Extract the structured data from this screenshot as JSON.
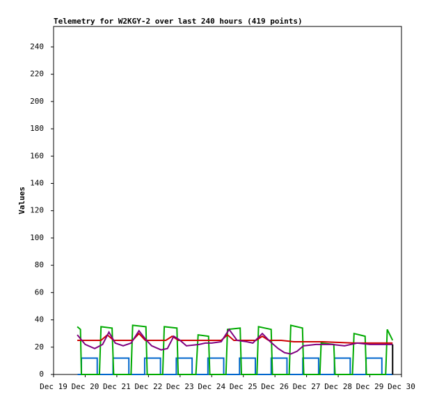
{
  "chart_data": {
    "type": "line",
    "title": "Telemetry for W2KGY-2 over last 240 hours (419 points)",
    "y_label": "Values",
    "xlim": [
      0,
      11
    ],
    "xticks": [
      {
        "value": 0,
        "label": "Dec 19"
      },
      {
        "value": 1,
        "label": "Dec 20"
      },
      {
        "value": 2,
        "label": "Dec 21"
      },
      {
        "value": 3,
        "label": "Dec 22"
      },
      {
        "value": 4,
        "label": "Dec 23"
      },
      {
        "value": 5,
        "label": "Dec 24"
      },
      {
        "value": 6,
        "label": "Dec 25"
      },
      {
        "value": 7,
        "label": "Dec 26"
      },
      {
        "value": 8,
        "label": "Dec 27"
      },
      {
        "value": 9,
        "label": "Dec 28"
      },
      {
        "value": 10,
        "label": "Dec 29"
      },
      {
        "value": 11,
        "label": "Dec 30"
      }
    ],
    "ylim": [
      0,
      255
    ],
    "yticks": [
      0,
      20,
      40,
      60,
      80,
      100,
      120,
      140,
      160,
      180,
      200,
      220,
      240
    ],
    "series": [
      {
        "color": "#0066cc",
        "x": [
          0.76,
          0.88,
          0.88,
          1.38,
          1.38,
          1.88,
          1.88,
          2.38,
          2.38,
          2.88,
          2.88,
          3.38,
          3.38,
          3.88,
          3.88,
          4.38,
          4.38,
          4.88,
          4.88,
          5.38,
          5.38,
          5.88,
          5.88,
          6.38,
          6.38,
          6.88,
          6.88,
          7.38,
          7.38,
          7.88,
          7.88,
          8.38,
          8.38,
          8.88,
          8.88,
          9.38,
          9.38,
          9.88,
          9.88,
          10.38,
          10.38,
          10.72
        ],
        "values": [
          0,
          0,
          12,
          12,
          0,
          0,
          12,
          12,
          0,
          0,
          12,
          12,
          0,
          0,
          12,
          12,
          0,
          0,
          12,
          12,
          0,
          0,
          12,
          12,
          0,
          0,
          12,
          12,
          0,
          0,
          12,
          12,
          0,
          0,
          12,
          12,
          0,
          0,
          12,
          12,
          0,
          0
        ]
      },
      {
        "color": "#00aa00",
        "x": [
          0.75,
          0.85,
          0.88,
          1.45,
          1.5,
          1.85,
          1.9,
          2.45,
          2.5,
          2.92,
          2.96,
          3.45,
          3.5,
          3.9,
          3.94,
          4.5,
          4.57,
          4.9,
          4.94,
          5.45,
          5.5,
          5.9,
          5.94,
          6.43,
          6.48,
          6.88,
          6.92,
          7.45,
          7.5,
          7.87,
          7.91,
          8.42,
          8.46,
          8.86,
          8.9,
          9.45,
          9.5,
          9.85,
          9.89,
          10.5,
          10.55,
          10.72
        ],
        "values": [
          35,
          33,
          0,
          0,
          35,
          34,
          0,
          0,
          36,
          35,
          0,
          0,
          35,
          34,
          0,
          0,
          29,
          28,
          0,
          0,
          33,
          34,
          0,
          0,
          35,
          33,
          0,
          0,
          36,
          34,
          0,
          0,
          23,
          22,
          0,
          0,
          30,
          28,
          0,
          0,
          33,
          25
        ]
      },
      {
        "color": "#cc0000",
        "x": [
          0.75,
          1.5,
          1.7,
          1.9,
          2.5,
          2.7,
          2.9,
          3.55,
          3.75,
          3.95,
          5.3,
          5.5,
          5.7,
          6.4,
          6.6,
          6.8,
          7.2,
          7.6,
          8.5,
          9.5,
          10.0,
          10.72
        ],
        "values": [
          25,
          25,
          29,
          25,
          25,
          30,
          25,
          25,
          28,
          25,
          25,
          29,
          25,
          25,
          28,
          25,
          25,
          24,
          24,
          23,
          23,
          23
        ]
      },
      {
        "color": "#800080",
        "x": [
          0.75,
          1.0,
          1.3,
          1.55,
          1.75,
          1.95,
          2.2,
          2.45,
          2.7,
          2.9,
          3.1,
          3.4,
          3.6,
          3.8,
          4.0,
          4.2,
          4.6,
          4.8,
          5.0,
          5.3,
          5.55,
          5.8,
          6.1,
          6.3,
          6.6,
          6.85,
          7.1,
          7.3,
          7.5,
          7.7,
          7.9,
          8.3,
          8.8,
          9.2,
          9.6,
          10.0,
          10.4,
          10.72
        ],
        "values": [
          29,
          22,
          19,
          22,
          31,
          23,
          21,
          23,
          32,
          26,
          21,
          18,
          19,
          28,
          25,
          21,
          22,
          23,
          23,
          24,
          33,
          25,
          24,
          23,
          30,
          24,
          19,
          16,
          15,
          17,
          21,
          22,
          22,
          21,
          23,
          22,
          22,
          22
        ]
      },
      {
        "color": "#000000",
        "x": [
          10.72,
          10.72
        ],
        "values": [
          0,
          22
        ]
      }
    ]
  }
}
